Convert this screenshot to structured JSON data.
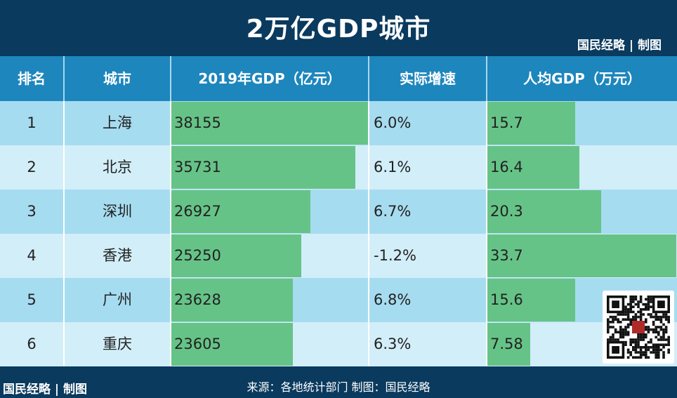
{
  "title": "2万亿GDP城市",
  "brand": "国民经略 | 制图",
  "footer": {
    "source": "来源：各地统计部门   制图：国民经略"
  },
  "colors": {
    "bar": "#66c387",
    "header": "#1d86bd",
    "title_bg": "#0a3a5e",
    "row_odd": "#a6dcf0",
    "row_even": "#d2eef9"
  },
  "icons": {
    "qr": "qr-code-icon"
  },
  "chart_data": {
    "type": "table",
    "columns": [
      "排名",
      "城市",
      "2019年GDP（亿元）",
      "实际增速",
      "人均GDP（万元）"
    ],
    "gdp_max": 38155,
    "per_capita_max": 33.7,
    "rows": [
      {
        "rank": "1",
        "city": "上海",
        "gdp": 38155,
        "gdp_label": "38155",
        "growth": "6.0%",
        "per_capita": 15.7,
        "per_capita_label": "15.7"
      },
      {
        "rank": "2",
        "city": "北京",
        "gdp": 35731,
        "gdp_label": "35731",
        "growth": "6.1%",
        "per_capita": 16.4,
        "per_capita_label": "16.4"
      },
      {
        "rank": "3",
        "city": "深圳",
        "gdp": 26927,
        "gdp_label": "26927",
        "growth": "6.7%",
        "per_capita": 20.3,
        "per_capita_label": "20.3"
      },
      {
        "rank": "4",
        "city": "香港",
        "gdp": 25250,
        "gdp_label": "25250",
        "growth": "-1.2%",
        "per_capita": 33.7,
        "per_capita_label": "33.7"
      },
      {
        "rank": "5",
        "city": "广州",
        "gdp": 23628,
        "gdp_label": "23628",
        "growth": "6.8%",
        "per_capita": 15.6,
        "per_capita_label": "15.6"
      },
      {
        "rank": "6",
        "city": "重庆",
        "gdp": 23605,
        "gdp_label": "23605",
        "growth": "6.3%",
        "per_capita": 7.58,
        "per_capita_label": "7.58"
      }
    ]
  }
}
